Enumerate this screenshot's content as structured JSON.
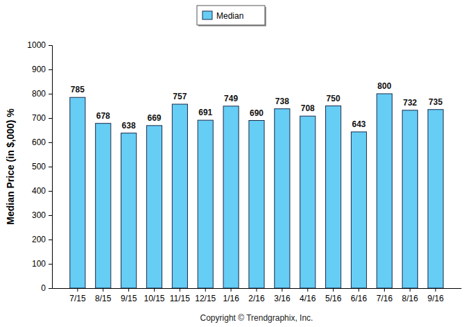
{
  "chart_data": {
    "type": "bar",
    "y_label": "Median Price (in $,000) %",
    "annotations": [
      "Copyright © Trendgraphix, Inc."
    ],
    "categories": [
      "7/15",
      "8/15",
      "9/15",
      "10/15",
      "11/15",
      "12/15",
      "1/16",
      "2/16",
      "3/16",
      "4/16",
      "5/16",
      "6/16",
      "7/16",
      "8/16",
      "9/16"
    ],
    "series": [
      {
        "name": "Median",
        "color": "#66cdf5",
        "values": [
          785,
          678,
          638,
          669,
          757,
          691,
          749,
          690,
          738,
          708,
          750,
          643,
          800,
          732,
          735
        ]
      }
    ],
    "ylim": [
      0,
      1000
    ],
    "yticks": [
      0,
      100,
      200,
      300,
      400,
      500,
      600,
      700,
      800,
      900,
      1000
    ],
    "legend": "top",
    "data_labels": true,
    "grid": false
  }
}
